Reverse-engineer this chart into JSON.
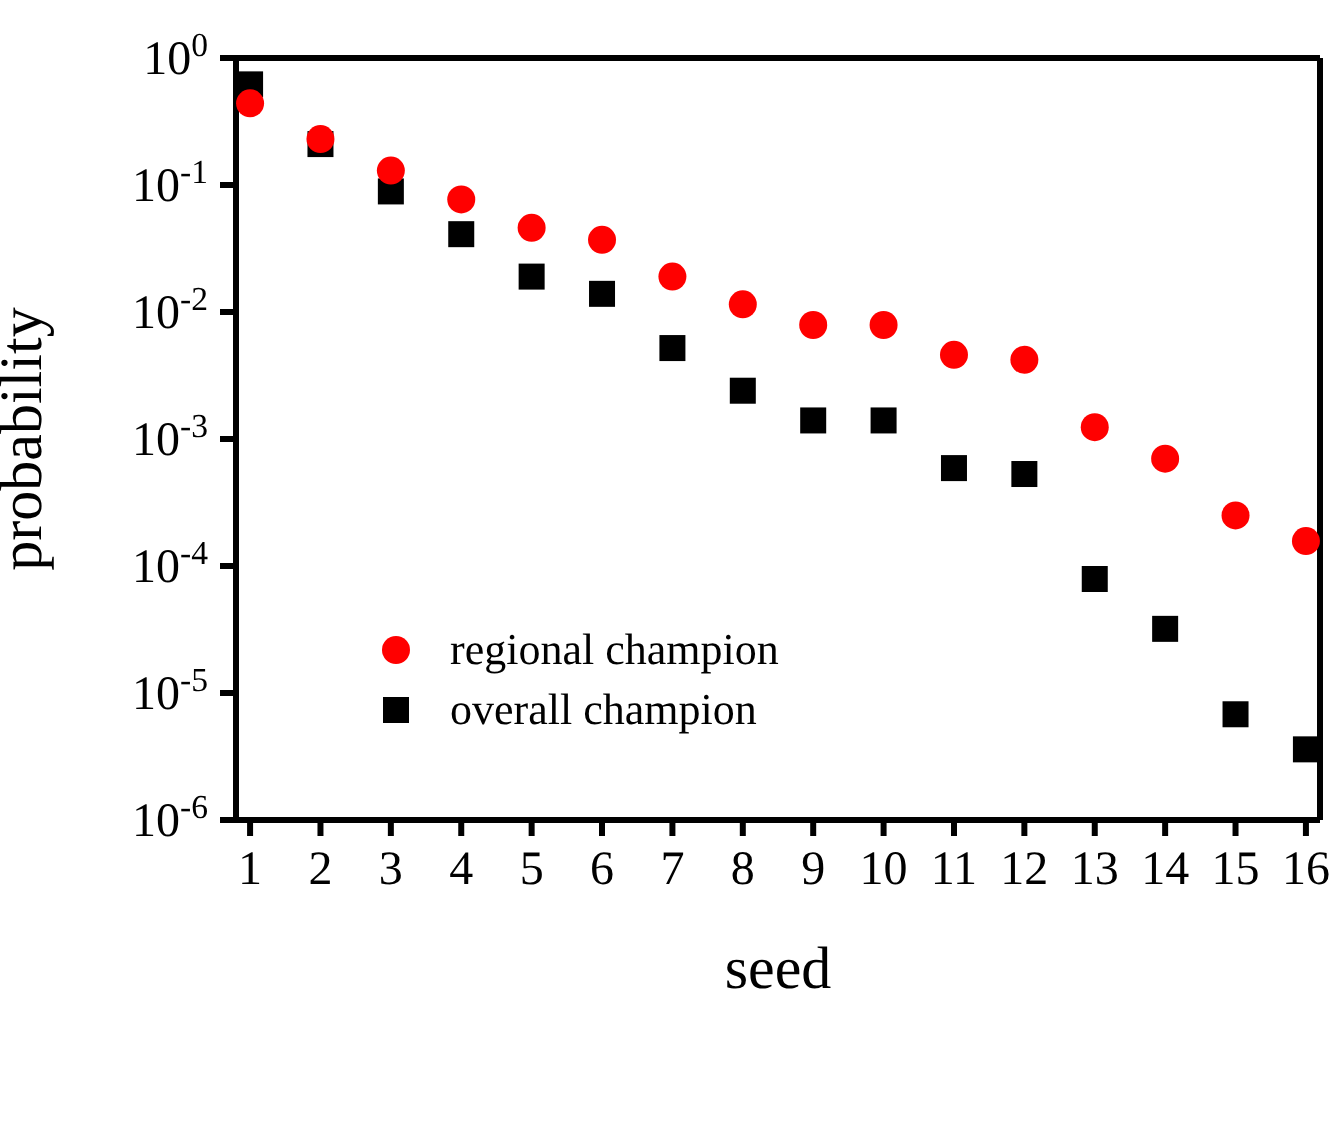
{
  "chart_data": {
    "type": "scatter",
    "xlabel": "seed",
    "ylabel": "probability",
    "x": [
      1,
      2,
      3,
      4,
      5,
      6,
      7,
      8,
      9,
      10,
      11,
      12,
      13,
      14,
      15,
      16
    ],
    "series": [
      {
        "name": "regional champion",
        "color": "#ff0000",
        "marker": "circle",
        "values": [
          0.44,
          0.23,
          0.13,
          0.077,
          0.046,
          0.037,
          0.019,
          0.0115,
          0.0079,
          0.0079,
          0.0046,
          0.0042,
          0.00124,
          0.0007,
          0.00025,
          0.000157
        ]
      },
      {
        "name": "overall champion",
        "color": "#000000",
        "marker": "square",
        "values": [
          0.62,
          0.21,
          0.089,
          0.041,
          0.019,
          0.0139,
          0.0052,
          0.0024,
          0.0014,
          0.0014,
          0.00059,
          0.00053,
          7.9e-05,
          3.2e-05,
          6.8e-06,
          3.6e-06
        ]
      }
    ],
    "log": "y",
    "xlim": [
      0.8,
      16.2
    ],
    "xticks": [
      1,
      2,
      3,
      4,
      5,
      6,
      7,
      8,
      9,
      10,
      11,
      12,
      13,
      14,
      15,
      16
    ],
    "ylim": [
      1e-06,
      1
    ],
    "yticks": [
      {
        "value": 1,
        "label": "10$^{0}$"
      },
      {
        "value": 0.1,
        "label": "10$^{-1}$"
      },
      {
        "value": 0.01,
        "label": "10$^{-2}$"
      },
      {
        "value": 0.001,
        "label": "10$^{-3}$"
      },
      {
        "value": 0.0001,
        "label": "10$^{-4}$"
      },
      {
        "value": 1e-05,
        "label": "10$^{-5}$"
      },
      {
        "value": 1e-06,
        "label": "10$^{-6}$"
      }
    ],
    "grid": false,
    "legend": "left"
  }
}
